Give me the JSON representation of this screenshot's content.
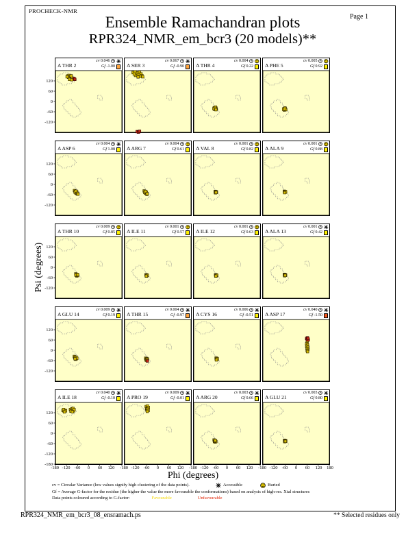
{
  "page": {
    "app_name": "PROCHECK-NMR",
    "title": "Ensemble Ramachandran plots",
    "subtitle": "RPR324_NMR_em_bcr3 (20 models)**",
    "page_label": "Page  1",
    "x_axis_label": "Phi (degrees)",
    "y_axis_label": "Psi (degrees)",
    "footer_filename": "RPR324_NMR_em_bcr3_08_ensramach.ps",
    "footer_note": "** Selected residues only"
  },
  "legend": {
    "line1": "cv = Circular Variance (low values signify high clustering of the data points).",
    "accessible_label": "Accessible",
    "buried_label": "Buried",
    "line2": "Gf = Average G-factor for the residue (the higher the value the more favourable the conformations) based on analysis of high-res. Xtal structures",
    "line3": "Data points coloured according to G-factor:",
    "favourable_label": "Favourable",
    "unfavourable_label": "Unfavourable",
    "favourable_color": "#F5D800",
    "unfavourable_color": "#E02000"
  },
  "colors": {
    "panel_bg": "#FFFFC8",
    "region_outline": "#8A8A8A",
    "favourable_point": "#D8BE00",
    "favourable_point_border": "#3A3000",
    "unfavourable_point": "#C42814",
    "unfavourable_point_border": "#3A0000",
    "gf_yellow": "#FFF200",
    "gf_orange": "#FFA33C",
    "gf_red": "#F2571F"
  },
  "axes": {
    "xlim": [
      -180,
      180
    ],
    "ylim": [
      -180,
      180
    ],
    "x_ticks": [
      -180,
      -120,
      -60,
      0,
      60,
      120,
      180
    ],
    "y_ticks": [
      120,
      60,
      0,
      -60,
      -120,
      -180
    ]
  },
  "chart_data": {
    "type": "scatter",
    "grid": "4 columns x 5 rows of per-residue Ramachandran plots, phi vs psi in degrees",
    "panels": [
      {
        "residue": "A THR 2",
        "cv": "0.046",
        "accessibility": "accessible",
        "gf": "-1.00",
        "gf_color_key": "gf_orange",
        "favourable": [
          [
            -114,
            149
          ],
          [
            -107,
            152
          ],
          [
            -100,
            147
          ],
          [
            -109,
            141
          ],
          [
            -102,
            137
          ],
          [
            -95,
            142
          ],
          [
            -97,
            132
          ],
          [
            -89,
            136
          ],
          [
            -104,
            129
          ],
          [
            -92,
            127
          ],
          [
            -117,
            144
          ],
          [
            -95,
            150
          ]
        ],
        "unfavourable": [
          [
            -79,
            134
          ],
          [
            -75,
            129
          ]
        ]
      },
      {
        "residue": "A SER 3",
        "cv": "0.067",
        "accessibility": "accessible",
        "gf": "-0.90",
        "gf_color_key": "gf_orange",
        "favourable": [
          [
            -134,
            169
          ],
          [
            -122,
            173
          ],
          [
            -110,
            167
          ],
          [
            -99,
            171
          ],
          [
            -114,
            159
          ],
          [
            -102,
            156
          ],
          [
            -91,
            161
          ],
          [
            -86,
            151
          ],
          [
            -97,
            147
          ],
          [
            -121,
            152
          ],
          [
            -82,
            144
          ],
          [
            -107,
            143
          ],
          [
            -128,
            160
          ]
        ],
        "unfavourable": [
          [
            -112,
            -176
          ],
          [
            -105,
            -179
          ],
          [
            -99,
            -174
          ]
        ]
      },
      {
        "residue": "A THR 4",
        "cv": "0.004",
        "accessibility": "buried",
        "gf": "0.22",
        "gf_color_key": "gf_yellow",
        "favourable": [
          [
            -69,
            -37
          ],
          [
            -65,
            -42
          ],
          [
            -60,
            -38
          ],
          [
            -67,
            -46
          ],
          [
            -62,
            -33
          ],
          [
            -58,
            -44
          ],
          [
            -71,
            -42
          ],
          [
            -63,
            -40
          ],
          [
            -60,
            -48
          ]
        ],
        "unfavourable": []
      },
      {
        "residue": "A PHE 5",
        "cv": "0.005",
        "accessibility": "buried",
        "gf": "0.92",
        "gf_color_key": "gf_yellow",
        "favourable": [
          [
            -66,
            -42
          ],
          [
            -62,
            -46
          ],
          [
            -58,
            -43
          ],
          [
            -64,
            -50
          ],
          [
            -60,
            -38
          ],
          [
            -56,
            -48
          ],
          [
            -68,
            -46
          ],
          [
            -61,
            -44
          ]
        ],
        "unfavourable": []
      },
      {
        "residue": "A ASP 6",
        "cv": "0.004",
        "accessibility": "accessible",
        "gf": "1.08",
        "gf_color_key": "gf_yellow",
        "favourable": [
          [
            -77,
            -36
          ],
          [
            -73,
            -41
          ],
          [
            -69,
            -45
          ],
          [
            -66,
            -51
          ],
          [
            -62,
            -56
          ],
          [
            -70,
            -49
          ],
          [
            -74,
            -45
          ],
          [
            -65,
            -43
          ],
          [
            -69,
            -39
          ],
          [
            -61,
            -52
          ],
          [
            -58,
            -57
          ]
        ],
        "unfavourable": []
      },
      {
        "residue": "A ARG 7",
        "cv": "0.004",
        "accessibility": "buried",
        "gf": "0.61",
        "gf_color_key": "gf_yellow",
        "favourable": [
          [
            -74,
            -38
          ],
          [
            -70,
            -43
          ],
          [
            -66,
            -47
          ],
          [
            -63,
            -53
          ],
          [
            -59,
            -58
          ],
          [
            -67,
            -51
          ],
          [
            -71,
            -47
          ],
          [
            -62,
            -45
          ],
          [
            -66,
            -41
          ],
          [
            -58,
            -54
          ]
        ],
        "unfavourable": []
      },
      {
        "residue": "A VAL 8",
        "cv": "0.001",
        "accessibility": "buried",
        "gf": "0.82",
        "gf_color_key": "gf_yellow",
        "favourable": [
          [
            -64,
            -41
          ],
          [
            -61,
            -44
          ],
          [
            -58,
            -46
          ],
          [
            -63,
            -47
          ],
          [
            -60,
            -42
          ],
          [
            -57,
            -44
          ],
          [
            -62,
            -49
          ],
          [
            -59,
            -47
          ]
        ],
        "unfavourable": []
      },
      {
        "residue": "A ALA 9",
        "cv": "0.001",
        "accessibility": "buried",
        "gf": "0.88",
        "gf_color_key": "gf_yellow",
        "favourable": [
          [
            -64,
            -40
          ],
          [
            -61,
            -43
          ],
          [
            -58,
            -45
          ],
          [
            -63,
            -46
          ],
          [
            -60,
            -41
          ],
          [
            -57,
            -43
          ],
          [
            -62,
            -48
          ]
        ],
        "unfavourable": []
      },
      {
        "residue": "A THR 10",
        "cv": "0.009",
        "accessibility": "buried",
        "gf": "0.85",
        "gf_color_key": "gf_yellow",
        "favourable": [
          [
            -70,
            -38
          ],
          [
            -66,
            -42
          ],
          [
            -62,
            -45
          ],
          [
            -68,
            -47
          ],
          [
            -64,
            -50
          ],
          [
            -60,
            -47
          ],
          [
            -66,
            -44
          ],
          [
            -63,
            -41
          ],
          [
            -69,
            -44
          ],
          [
            -60,
            -42
          ]
        ],
        "unfavourable": []
      },
      {
        "residue": "A ILE 11",
        "cv": "0.001",
        "accessibility": "buried",
        "gf": "0.57",
        "gf_color_key": "gf_yellow",
        "favourable": [
          [
            -64,
            -43
          ],
          [
            -61,
            -46
          ],
          [
            -58,
            -48
          ],
          [
            -63,
            -49
          ],
          [
            -60,
            -44
          ],
          [
            -57,
            -46
          ],
          [
            -62,
            -51
          ]
        ],
        "unfavourable": []
      },
      {
        "residue": "A ILE 12",
        "cv": "0.001",
        "accessibility": "buried",
        "gf": "0.63",
        "gf_color_key": "gf_yellow",
        "favourable": [
          [
            -62,
            -43
          ],
          [
            -59,
            -46
          ],
          [
            -56,
            -48
          ],
          [
            -61,
            -49
          ],
          [
            -58,
            -44
          ],
          [
            -55,
            -46
          ],
          [
            -60,
            -51
          ]
        ],
        "unfavourable": []
      },
      {
        "residue": "A ALA 13",
        "cv": "0.001",
        "accessibility": "accessible",
        "gf": "0.42",
        "gf_color_key": "gf_yellow",
        "favourable": [
          [
            -64,
            -41
          ],
          [
            -61,
            -44
          ],
          [
            -58,
            -46
          ],
          [
            -63,
            -47
          ],
          [
            -60,
            -42
          ],
          [
            -57,
            -44
          ],
          [
            -62,
            -49
          ],
          [
            -59,
            -47
          ]
        ],
        "unfavourable": []
      },
      {
        "residue": "A GLU 14",
        "cv": "0.009",
        "accessibility": "accessible",
        "gf": "0.19",
        "gf_color_key": "gf_yellow",
        "favourable": [
          [
            -78,
            -36
          ],
          [
            -74,
            -40
          ],
          [
            -70,
            -44
          ],
          [
            -67,
            -49
          ],
          [
            -72,
            -46
          ],
          [
            -76,
            -42
          ],
          [
            -68,
            -40
          ],
          [
            -71,
            -52
          ],
          [
            -64,
            -47
          ],
          [
            -74,
            -49
          ]
        ],
        "unfavourable": []
      },
      {
        "residue": "A THR 15",
        "cv": "0.004",
        "accessibility": "accessible",
        "gf": "-0.97",
        "gf_color_key": "gf_orange",
        "favourable": [
          [
            -66,
            -46
          ],
          [
            -62,
            -50
          ],
          [
            -58,
            -53
          ],
          [
            -64,
            -55
          ],
          [
            -60,
            -48
          ],
          [
            -56,
            -51
          ],
          [
            -62,
            -58
          ],
          [
            -59,
            -55
          ]
        ],
        "unfavourable": [
          [
            -57,
            -62
          ]
        ]
      },
      {
        "residue": "A CYS 16",
        "cv": "0.006",
        "accessibility": "accessible",
        "gf": "-0.51",
        "gf_color_key": "gf_yellow",
        "favourable": [
          [
            -59,
            -45
          ],
          [
            -56,
            -49
          ],
          [
            -53,
            -52
          ],
          [
            -58,
            -53
          ],
          [
            -55,
            -47
          ],
          [
            -52,
            -50
          ],
          [
            -57,
            -56
          ]
        ],
        "unfavourable": []
      },
      {
        "residue": "A ASP 17",
        "cv": "0.040",
        "accessibility": "accessible",
        "gf": "-1.50",
        "gf_color_key": "gf_red",
        "favourable": [
          [
            60,
            45
          ],
          [
            57,
            38
          ],
          [
            62,
            32
          ],
          [
            58,
            24
          ],
          [
            63,
            17
          ],
          [
            59,
            10
          ],
          [
            64,
            4
          ],
          [
            60,
            -2
          ],
          [
            62,
            -8
          ]
        ],
        "unfavourable": [
          [
            57,
            69
          ],
          [
            63,
            67
          ],
          [
            60,
            63
          ],
          [
            66,
            61
          ],
          [
            61,
            73
          ],
          [
            64,
            70
          ]
        ]
      },
      {
        "residue": "A ILE 18",
        "cv": "0.040",
        "accessibility": "accessible",
        "gf": "-0.10",
        "gf_color_key": "gf_yellow",
        "favourable": [
          [
            -139,
            133
          ],
          [
            -133,
            129
          ],
          [
            -128,
            135
          ],
          [
            -136,
            139
          ],
          [
            -125,
            131
          ],
          [
            -131,
            125
          ],
          [
            -99,
            139
          ],
          [
            -93,
            133
          ],
          [
            -87,
            137
          ],
          [
            -81,
            131
          ],
          [
            -91,
            143
          ],
          [
            -85,
            145
          ],
          [
            -96,
            129
          ],
          [
            -79,
            139
          ],
          [
            -88,
            126
          ]
        ],
        "unfavourable": []
      },
      {
        "residue": "A PRO 19",
        "cv": "0.009",
        "accessibility": "accessible",
        "gf": "-0.01",
        "gf_color_key": "gf_yellow",
        "favourable": [
          [
            -63,
            156
          ],
          [
            -58,
            151
          ],
          [
            -54,
            146
          ],
          [
            -61,
            143
          ],
          [
            -56,
            159
          ],
          [
            -51,
            151
          ],
          [
            -59,
            137
          ],
          [
            -55,
            141
          ],
          [
            -52,
            133
          ],
          [
            -57,
            128
          ]
        ],
        "unfavourable": []
      },
      {
        "residue": "A ARG 20",
        "cv": "0.003",
        "accessibility": "accessible",
        "gf": "0.66",
        "gf_color_key": "gf_yellow",
        "favourable": [
          [
            -70,
            -39
          ],
          [
            -66,
            -43
          ],
          [
            -62,
            -46
          ],
          [
            -68,
            -48
          ],
          [
            -64,
            -51
          ],
          [
            -60,
            -48
          ],
          [
            -66,
            -45
          ],
          [
            -63,
            -42
          ]
        ],
        "unfavourable": []
      },
      {
        "residue": "A GLU 21",
        "cv": "0.003",
        "accessibility": "accessible",
        "gf": "0.80",
        "gf_color_key": "gf_yellow",
        "favourable": [
          [
            -63,
            -41
          ],
          [
            -60,
            -44
          ],
          [
            -57,
            -46
          ],
          [
            -62,
            -47
          ],
          [
            -59,
            -42
          ],
          [
            -56,
            -44
          ],
          [
            -61,
            -49
          ],
          [
            -58,
            -47
          ]
        ],
        "unfavourable": []
      }
    ]
  }
}
